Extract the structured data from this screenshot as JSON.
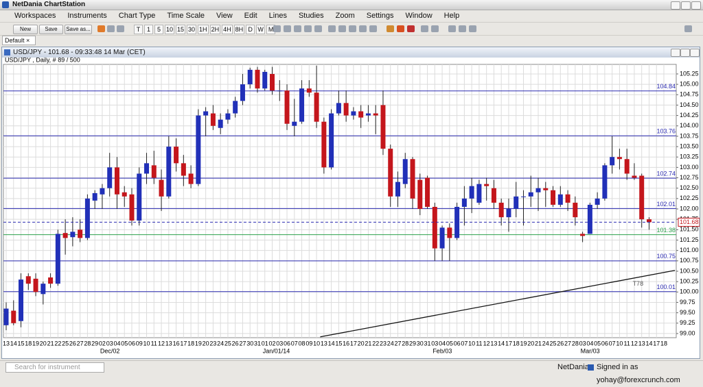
{
  "window": {
    "title": "NetDania ChartStation"
  },
  "menu": [
    "Workspaces",
    "Instruments",
    "Chart Type",
    "Time Scale",
    "View",
    "Edit",
    "Lines",
    "Studies",
    "Zoom",
    "Settings",
    "Window",
    "Help"
  ],
  "toolbar": {
    "buttons": [
      "New",
      "Save",
      "Save as..."
    ],
    "periods": [
      "T",
      "1",
      "5",
      "10",
      "15",
      "30",
      "1H",
      "2H",
      "4H",
      "8H",
      "D",
      "W",
      "M"
    ]
  },
  "tab": "Default",
  "chart_window": {
    "title": "USD/JPY - 101.68 - 09:33:48  14 Mar (CET)"
  },
  "status": {
    "search_placeholder": "Search for instrument",
    "brand": "NetDania",
    "signed_in": "Signed in as yohay@forexcrunch.com"
  },
  "chart_data": {
    "type": "candlestick",
    "subtitle": "USD/JPY , Daily, # 89 / 500",
    "categories": [
      "13",
      "14",
      "15",
      "18",
      "19",
      "20",
      "21",
      "22",
      "25",
      "26",
      "27",
      "28",
      "29",
      "02",
      "03",
      "04",
      "05",
      "06",
      "09",
      "10",
      "11",
      "12",
      "13",
      "16",
      "17",
      "18",
      "19",
      "20",
      "23",
      "24",
      "25",
      "26",
      "27",
      "30",
      "31",
      "01",
      "02",
      "03",
      "06",
      "07",
      "08",
      "09",
      "10",
      "13",
      "14",
      "15",
      "16",
      "17",
      "20",
      "21",
      "22",
      "23",
      "24",
      "27",
      "28",
      "29",
      "30",
      "31",
      "03",
      "04",
      "05",
      "06",
      "07",
      "10",
      "11",
      "12",
      "13",
      "14",
      "17",
      "18",
      "19",
      "20",
      "21",
      "24",
      "25",
      "26",
      "27",
      "28",
      "03",
      "04",
      "05",
      "06",
      "07",
      "10",
      "11",
      "12",
      "13",
      "14",
      "17",
      "18"
    ],
    "month_labels": [
      "Dec/02",
      "Jan/01/14",
      "Feb/03",
      "Mar/03"
    ],
    "open": [
      99.2,
      99.55,
      99.3,
      100.38,
      100.32,
      99.95,
      100.35,
      100.2,
      101.42,
      101.32,
      101.5,
      101.3,
      102.2,
      102.35,
      102.5,
      103.0,
      102.4,
      102.35,
      101.72,
      102.85,
      103.05,
      102.7,
      102.3,
      103.5,
      103.1,
      102.85,
      102.6,
      104.25,
      104.3,
      103.95,
      104.15,
      104.3,
      104.6,
      105.0,
      105.35,
      104.9,
      105.25,
      104.85,
      104.85,
      104.0,
      104.1,
      104.9,
      104.8,
      104.1,
      103.0,
      104.3,
      104.55,
      104.25,
      104.35,
      104.25,
      104.3,
      104.5,
      103.45,
      102.3,
      102.6,
      103.2,
      102.7,
      102.75,
      102.05,
      101.05,
      101.55,
      101.3,
      102.05,
      102.25,
      102.15,
      102.6,
      102.5,
      102.15,
      101.8,
      102.0,
      102.3,
      102.3,
      102.4,
      102.5,
      102.45,
      102.1,
      102.35,
      102.15,
      101.4,
      101.4,
      102.1,
      102.25,
      103.05,
      103.25,
      103.2,
      102.8,
      102.8,
      101.75,
      null,
      null
    ],
    "high": [
      99.75,
      99.8,
      100.45,
      100.45,
      100.45,
      100.25,
      100.45,
      101.5,
      101.75,
      101.8,
      101.75,
      102.35,
      102.45,
      102.6,
      103.35,
      103.25,
      102.55,
      102.5,
      103.0,
      103.35,
      103.4,
      102.95,
      103.75,
      103.7,
      103.3,
      103.05,
      104.4,
      104.45,
      104.5,
      104.3,
      104.4,
      104.7,
      105.25,
      105.4,
      105.42,
      105.35,
      105.42,
      105.1,
      105.0,
      104.65,
      105.1,
      105.1,
      105.45,
      104.2,
      104.4,
      104.85,
      104.85,
      104.45,
      104.5,
      104.5,
      104.5,
      104.85,
      103.55,
      102.9,
      103.35,
      103.25,
      102.85,
      102.8,
      102.15,
      101.6,
      101.65,
      102.15,
      102.55,
      102.75,
      102.7,
      102.75,
      102.7,
      102.25,
      102.25,
      102.65,
      102.45,
      102.8,
      102.75,
      102.65,
      102.55,
      102.55,
      102.45,
      102.3,
      101.45,
      102.15,
      102.4,
      103.1,
      103.75,
      103.45,
      103.45,
      103.1,
      102.85,
      101.8,
      null,
      null
    ],
    "low": [
      99.08,
      99.2,
      99.15,
      100.05,
      99.9,
      99.7,
      100.1,
      100.15,
      100.9,
      101.1,
      101.2,
      101.25,
      102.0,
      102.0,
      102.3,
      102.0,
      102.05,
      101.6,
      101.6,
      102.6,
      102.6,
      101.95,
      102.25,
      102.9,
      102.55,
      102.5,
      102.55,
      103.75,
      103.9,
      103.8,
      104.05,
      104.2,
      104.5,
      104.9,
      104.8,
      104.85,
      104.75,
      104.6,
      103.9,
      103.75,
      104.05,
      104.7,
      103.95,
      102.85,
      102.95,
      104.25,
      104.1,
      104.15,
      103.95,
      104.1,
      103.8,
      103.3,
      102.05,
      102.05,
      102.5,
      102.0,
      101.85,
      102.0,
      100.75,
      100.75,
      100.75,
      101.25,
      101.6,
      101.9,
      102.1,
      102.2,
      102.0,
      101.6,
      101.45,
      101.8,
      101.6,
      102.05,
      101.95,
      102.05,
      102.05,
      102.05,
      101.95,
      101.6,
      101.2,
      101.4,
      102.0,
      102.2,
      102.85,
      102.95,
      102.7,
      102.7,
      101.55,
      101.5,
      null,
      null
    ],
    "close": [
      99.6,
      99.25,
      100.3,
      100.2,
      100.0,
      100.2,
      100.2,
      101.4,
      101.3,
      101.45,
      101.3,
      102.25,
      102.38,
      102.5,
      103.0,
      102.35,
      102.3,
      101.72,
      102.85,
      103.1,
      102.75,
      102.3,
      103.5,
      103.1,
      102.8,
      102.6,
      104.25,
      104.35,
      104.0,
      104.15,
      104.3,
      104.6,
      105.0,
      105.35,
      104.9,
      105.3,
      104.85,
      104.85,
      104.05,
      104.1,
      104.9,
      104.8,
      104.1,
      103.0,
      104.3,
      104.55,
      104.25,
      104.35,
      104.2,
      104.3,
      104.25,
      103.45,
      102.3,
      102.65,
      103.2,
      102.25,
      102.0,
      102.05,
      101.05,
      101.55,
      101.3,
      102.05,
      102.25,
      102.55,
      102.6,
      102.55,
      102.15,
      101.8,
      102.0,
      102.3,
      102.3,
      102.4,
      102.5,
      102.45,
      102.1,
      102.35,
      102.15,
      101.8,
      101.35,
      102.1,
      102.25,
      103.05,
      103.25,
      103.2,
      102.85,
      102.75,
      101.75,
      101.68,
      null,
      null
    ],
    "up_color": "#2130b8",
    "down_color": "#c4161c",
    "ylim": [
      98.9,
      105.48
    ],
    "yticks": [
      {
        "value": 99,
        "label": "99.00"
      },
      99.25,
      {
        "value": 99.5,
        "label": "99.50"
      },
      99.75,
      {
        "value": 100,
        "label": "100.00"
      },
      100.25,
      {
        "value": 100.5,
        "label": "100.50"
      },
      100.75,
      {
        "value": 101,
        "label": "101.00"
      },
      101.25,
      {
        "value": 101.5,
        "label": "101.50"
      },
      101.75,
      {
        "value": 102,
        "label": "102.00"
      },
      102.25,
      {
        "value": 102.5,
        "label": "102.50"
      },
      102.75,
      {
        "value": 103,
        "label": "103.00"
      },
      103.25,
      {
        "value": 103.5,
        "label": "103.50"
      },
      103.75,
      {
        "value": 104,
        "label": "104.00"
      },
      104.25,
      {
        "value": 104.5,
        "label": "104.50"
      },
      104.75,
      {
        "value": 105,
        "label": "105.00"
      },
      105.25
    ],
    "grid": true,
    "levels": [
      {
        "value": 104.84,
        "color": "#2a2ab0"
      },
      {
        "value": 103.76,
        "color": "#2a2ab0"
      },
      {
        "value": 102.74,
        "color": "#2a2ab0"
      },
      {
        "value": 102.01,
        "color": "#2a2ab0"
      },
      {
        "value": 101.38,
        "color": "#2aa04a"
      },
      {
        "value": 100.75,
        "color": "#2a2ab0"
      },
      {
        "value": 100.01,
        "color": "#2a2ab0"
      }
    ],
    "current_price": {
      "value": 101.68,
      "color": "#c4161c"
    },
    "trendline": {
      "label": "T78",
      "start": [
        42.5,
        98.92
      ],
      "end": [
        90.5,
        100.52
      ],
      "color": "#111111"
    }
  }
}
